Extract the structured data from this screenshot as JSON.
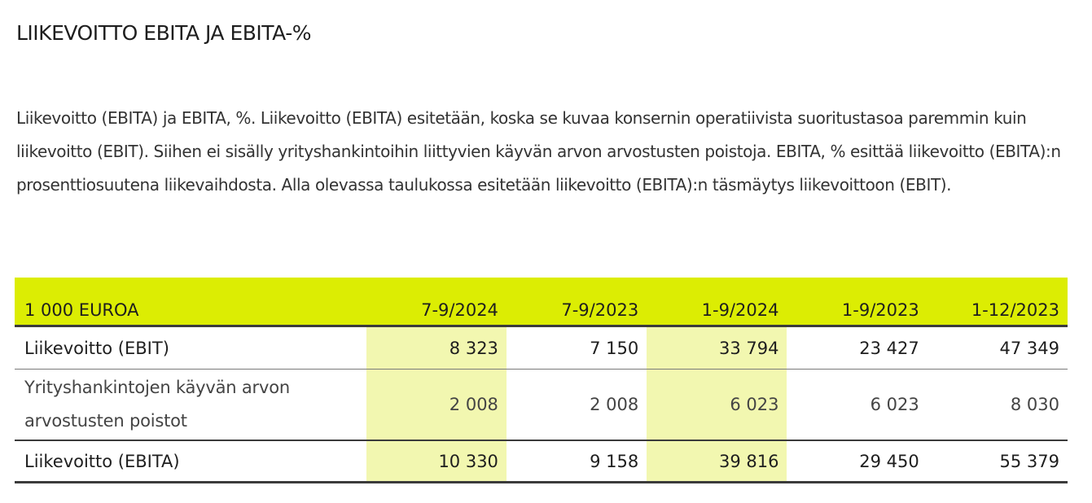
{
  "title": "LIIKEVOITTO EBITA JA EBITA-%",
  "intro": "Liikevoitto (EBITA) ja EBITA, %. Liikevoitto (EBITA) esitetään, koska se kuvaa konsernin operatiivista suoritustasoa paremmin kuin liikevoitto (EBIT). Siihen ei sisälly yrityshankintoihin liittyvien käyvän arvon arvostusten poistoja. EBITA, % esittää liikevoitto (EBITA):n prosenttiosuutena liikevaihdosta. Alla olevassa taulukossa esitetään liikevoitto (EBITA):n täsmäytys liikevoittoon (EBIT).",
  "table": {
    "headers": [
      "1 000 EUROA",
      "7-9/2024",
      "7-9/2023",
      "1-9/2024",
      "1-9/2023",
      "1-12/2023"
    ],
    "rows": [
      {
        "label": "Liikevoitto (EBIT)",
        "values": [
          "8 323",
          "7 150",
          "33 794",
          "23 427",
          "47 349"
        ]
      },
      {
        "label": "Yrityshankintojen käyvän arvon arvostusten poistot",
        "values": [
          "2 008",
          "2 008",
          "6 023",
          "6 023",
          "8 030"
        ]
      },
      {
        "label": "Liikevoitto (EBITA)",
        "values": [
          "10 330",
          "9 158",
          "39 816",
          "29 450",
          "55 379"
        ]
      }
    ],
    "colors": {
      "header_background": "#dced03",
      "highlight_background": "#f2f7b0",
      "rule": "#3b3b3b"
    }
  }
}
